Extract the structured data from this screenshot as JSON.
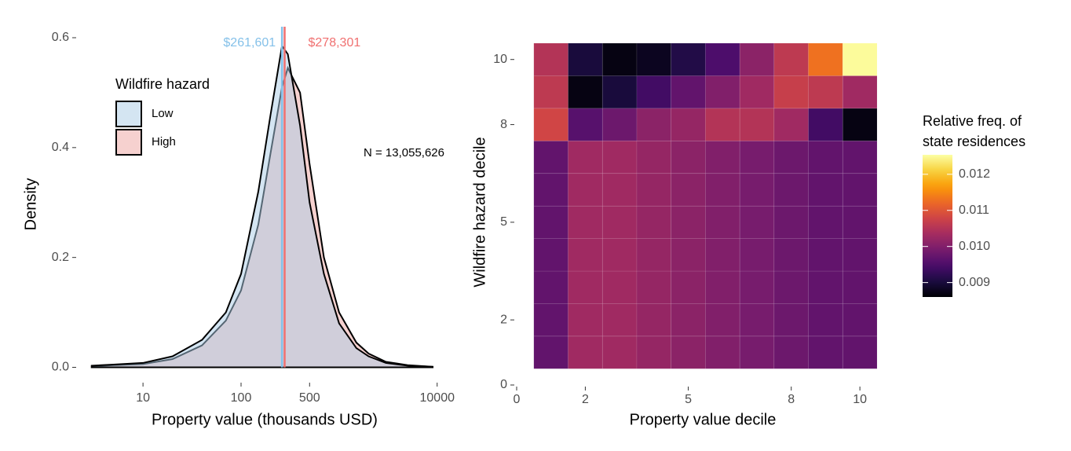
{
  "chart_data": [
    {
      "type": "density",
      "x_label": "Property value (thousands USD)",
      "y_label": "Density",
      "x": [
        3,
        5,
        10,
        20,
        40,
        70,
        100,
        150,
        200,
        261.6,
        300,
        400,
        500,
        700,
        1000,
        1500,
        2000,
        3000,
        5000,
        9000
      ],
      "series": [
        {
          "name": "High",
          "color": "#000000",
          "fill": "#eea3a0",
          "values": [
            0.002,
            0.004,
            0.006,
            0.015,
            0.04,
            0.085,
            0.14,
            0.26,
            0.39,
            0.51,
            0.545,
            0.5,
            0.37,
            0.2,
            0.1,
            0.045,
            0.025,
            0.01,
            0.004,
            0.001
          ]
        },
        {
          "name": "Low",
          "color": "#000000",
          "fill": "#a9cbe6",
          "values": [
            0.003,
            0.005,
            0.008,
            0.02,
            0.05,
            0.1,
            0.17,
            0.32,
            0.46,
            0.585,
            0.57,
            0.44,
            0.3,
            0.17,
            0.08,
            0.035,
            0.02,
            0.008,
            0.003,
            0.001
          ]
        }
      ],
      "alpha": 0.5,
      "legend_title": "Wildfire hazard",
      "legend_position": "top-left",
      "vlines": [
        {
          "x": 261.601,
          "label": "$261,601",
          "color": "#85c1e9"
        },
        {
          "x": 278.301,
          "label": "$278,301",
          "color": "#f07070"
        }
      ],
      "annotation": "N = 13,055,626",
      "x_log": true,
      "xlim": [
        2.2,
        14000
      ],
      "xticks": [
        10,
        100,
        500,
        10000
      ],
      "ylim": [
        -0.025,
        0.62
      ],
      "yticks": [
        {
          "value": 0,
          "label": "0.0"
        },
        0.2,
        0.4,
        0.6
      ]
    },
    {
      "type": "heatmap",
      "x_label": "Property value decile",
      "y_label": "Wildfire hazard decile",
      "x": [
        1,
        2,
        3,
        4,
        5,
        6,
        7,
        8,
        9,
        10
      ],
      "y": [
        1,
        2,
        3,
        4,
        5,
        6,
        7,
        8,
        9,
        10
      ],
      "z": [
        [
          0.0097,
          0.0103,
          0.0103,
          0.0102,
          0.0101,
          0.01,
          0.0099,
          0.0098,
          0.0097,
          0.0097
        ],
        [
          0.0097,
          0.0103,
          0.0103,
          0.0102,
          0.0101,
          0.01,
          0.0099,
          0.0098,
          0.0097,
          0.0097
        ],
        [
          0.0097,
          0.0103,
          0.0103,
          0.0102,
          0.0101,
          0.01,
          0.0099,
          0.0098,
          0.0097,
          0.0097
        ],
        [
          0.0097,
          0.0103,
          0.0103,
          0.0102,
          0.0101,
          0.01,
          0.0099,
          0.0098,
          0.0097,
          0.0097
        ],
        [
          0.0097,
          0.0103,
          0.0103,
          0.0102,
          0.0101,
          0.01,
          0.0099,
          0.0098,
          0.0097,
          0.0097
        ],
        [
          0.0097,
          0.0103,
          0.0103,
          0.0102,
          0.0101,
          0.01,
          0.0099,
          0.0098,
          0.0097,
          0.0097
        ],
        [
          0.0097,
          0.0103,
          0.0103,
          0.0102,
          0.0101,
          0.01,
          0.0099,
          0.0098,
          0.0097,
          0.0097
        ],
        [
          0.0108,
          0.0096,
          0.0098,
          0.0101,
          0.0102,
          0.0105,
          0.0105,
          0.0103,
          0.0094,
          0.0087
        ],
        [
          0.0106,
          0.0087,
          0.009,
          0.0094,
          0.0097,
          0.01,
          0.0103,
          0.0107,
          0.0106,
          0.0103
        ],
        [
          0.0105,
          0.009,
          0.0087,
          0.0088,
          0.0091,
          0.0095,
          0.0101,
          0.0106,
          0.0113,
          0.0125
        ]
      ],
      "colormap": "inferno",
      "colorbar_title": [
        "Relative freq. of",
        "state residences"
      ],
      "clim": [
        0.0086,
        0.01254
      ],
      "cticks": [
        0.009,
        {
          "value": 0.01,
          "label": "0.010"
        },
        0.011,
        0.012
      ],
      "xlim": [
        0,
        10.5
      ],
      "xticks": [
        0,
        2,
        5,
        8,
        10
      ],
      "ylim": [
        0,
        10.5
      ],
      "yticks": [
        0,
        2,
        5,
        8,
        10
      ]
    }
  ]
}
